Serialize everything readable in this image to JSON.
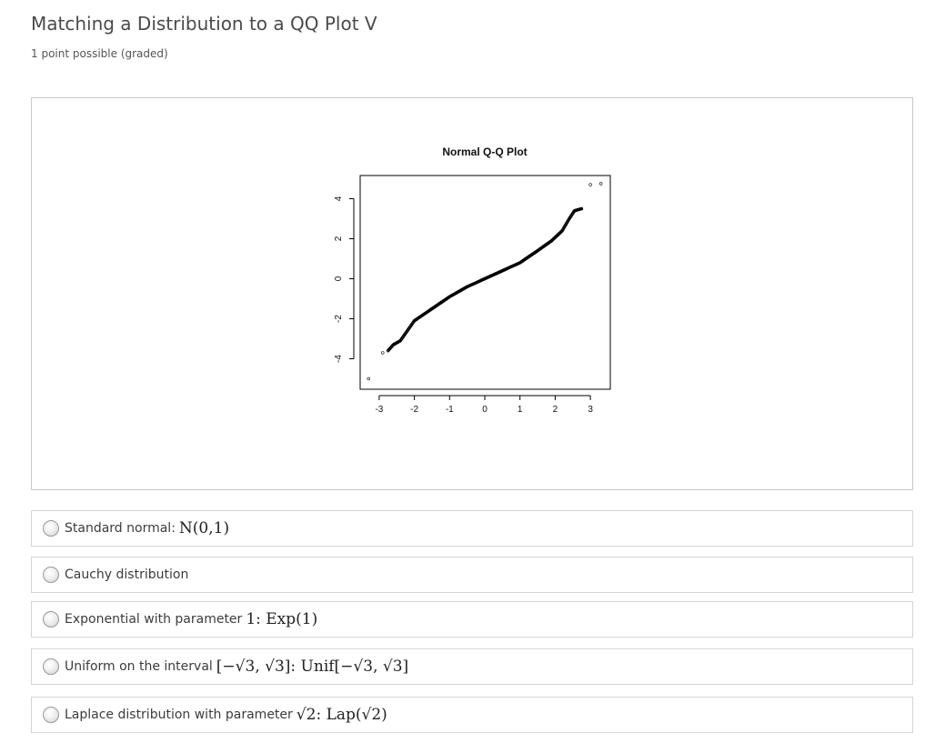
{
  "problem": {
    "title": "Matching a Distribution to a QQ Plot V",
    "points": "1 point possible (graded)"
  },
  "chart_data": {
    "type": "scatter",
    "title": "Normal Q-Q Plot",
    "xlabel": "",
    "ylabel": "",
    "xlim": [
      -3.3,
      3.6
    ],
    "ylim": [
      -5.2,
      5.0
    ],
    "x_ticks": [
      "-3",
      "-2",
      "-1",
      "0",
      "1",
      "2",
      "3"
    ],
    "y_ticks": [
      "-4",
      "-2",
      "0",
      "2",
      "4"
    ],
    "grid": false,
    "approx_points": [
      {
        "x": -3.3,
        "y": -5.0
      },
      {
        "x": -2.9,
        "y": -3.7
      },
      {
        "x": -2.75,
        "y": -3.6
      },
      {
        "x": -2.6,
        "y": -3.3
      },
      {
        "x": -2.4,
        "y": -3.1
      },
      {
        "x": -2.2,
        "y": -2.6
      },
      {
        "x": -2.0,
        "y": -2.1
      },
      {
        "x": -1.5,
        "y": -1.5
      },
      {
        "x": -1.0,
        "y": -0.9
      },
      {
        "x": -0.5,
        "y": -0.4
      },
      {
        "x": 0.0,
        "y": 0.0
      },
      {
        "x": 0.5,
        "y": 0.4
      },
      {
        "x": 1.0,
        "y": 0.8
      },
      {
        "x": 1.5,
        "y": 1.4
      },
      {
        "x": 1.9,
        "y": 1.9
      },
      {
        "x": 2.2,
        "y": 2.4
      },
      {
        "x": 2.4,
        "y": 3.0
      },
      {
        "x": 2.55,
        "y": 3.4
      },
      {
        "x": 2.75,
        "y": 3.5
      },
      {
        "x": 3.0,
        "y": 4.7
      },
      {
        "x": 3.3,
        "y": 4.75
      }
    ]
  },
  "choices": [
    {
      "label": "Standard normal:",
      "math": "N(0,1)"
    },
    {
      "label": "Cauchy distribution",
      "math": ""
    },
    {
      "label": "Exponential with parameter",
      "math": "1:  Exp(1)"
    },
    {
      "label": "Uniform on the interval",
      "math": "[−√3, √3]:  Unif[−√3, √3]"
    },
    {
      "label": "Laplace distribution with parameter",
      "math": "√2:  Lap(√2)"
    }
  ]
}
